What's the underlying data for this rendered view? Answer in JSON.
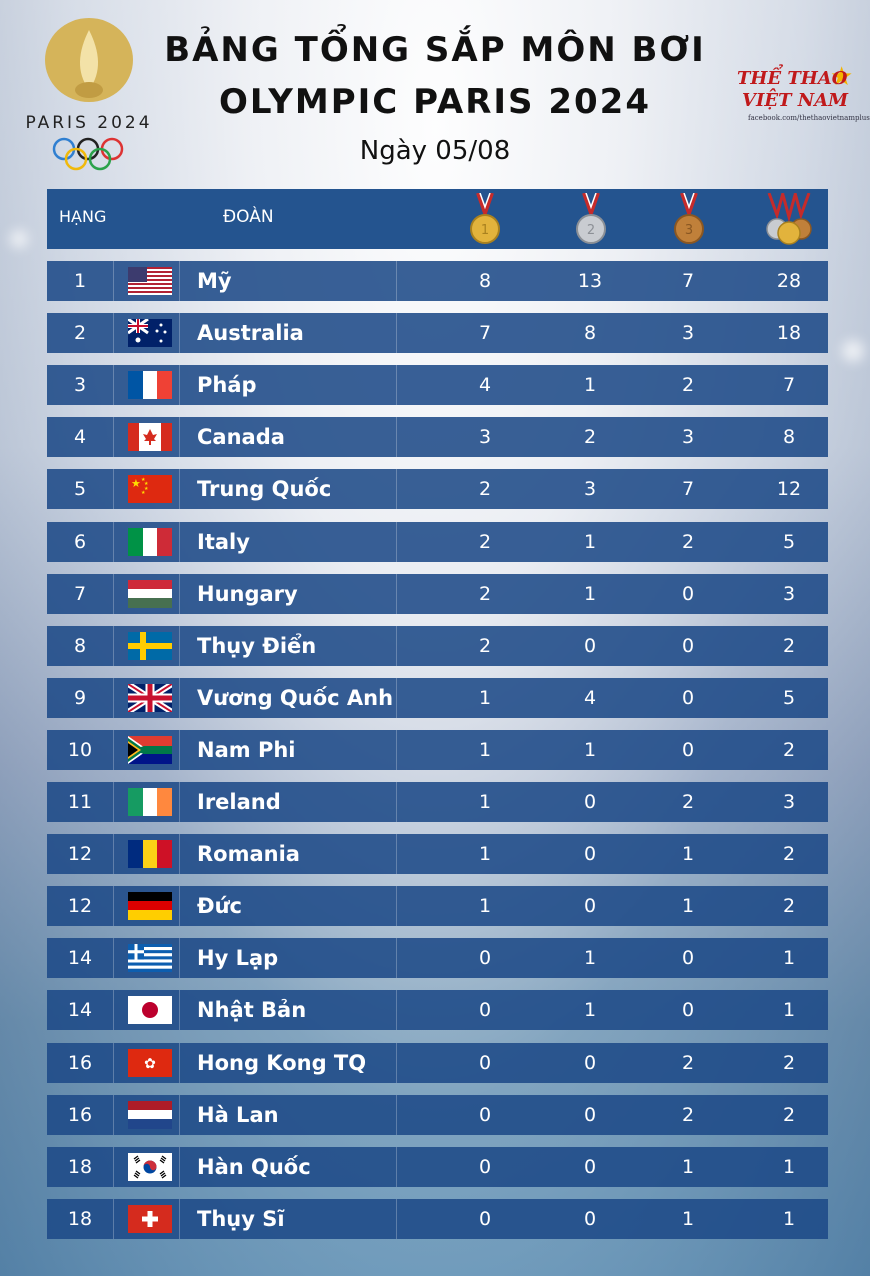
{
  "header": {
    "title_line1": "BẢNG TỔNG SẮP MÔN BƠI",
    "title_line2": "OLYMPIC PARIS 2024",
    "date": "Ngày 05/08",
    "paris_logo_text": "PARIS 2024",
    "brand_line1": "THỂ THAO",
    "brand_line2": "VIỆT NAM",
    "brand_url": "facebook.com/thethaovietnamplus"
  },
  "table": {
    "col_rank": "HẠNG",
    "col_team": "ĐOÀN",
    "medal_icons": [
      "gold-medal-icon",
      "silver-medal-icon",
      "bronze-medal-icon",
      "total-medals-icon"
    ],
    "rows": [
      {
        "rank": "1",
        "team": "Mỹ",
        "flag": "usa-flag-icon",
        "gold": "8",
        "silver": "13",
        "bronze": "7",
        "total": "28"
      },
      {
        "rank": "2",
        "team": "Australia",
        "flag": "australia-flag-icon",
        "gold": "7",
        "silver": "8",
        "bronze": "3",
        "total": "18"
      },
      {
        "rank": "3",
        "team": "Pháp",
        "flag": "france-flag-icon",
        "gold": "4",
        "silver": "1",
        "bronze": "2",
        "total": "7"
      },
      {
        "rank": "4",
        "team": "Canada",
        "flag": "canada-flag-icon",
        "gold": "3",
        "silver": "2",
        "bronze": "3",
        "total": "8"
      },
      {
        "rank": "5",
        "team": "Trung Quốc",
        "flag": "china-flag-icon",
        "gold": "2",
        "silver": "3",
        "bronze": "7",
        "total": "12"
      },
      {
        "rank": "6",
        "team": "Italy",
        "flag": "italy-flag-icon",
        "gold": "2",
        "silver": "1",
        "bronze": "2",
        "total": "5"
      },
      {
        "rank": "7",
        "team": "Hungary",
        "flag": "hungary-flag-icon",
        "gold": "2",
        "silver": "1",
        "bronze": "0",
        "total": "3"
      },
      {
        "rank": "8",
        "team": "Thụy Điển",
        "flag": "sweden-flag-icon",
        "gold": "2",
        "silver": "0",
        "bronze": "0",
        "total": "2"
      },
      {
        "rank": "9",
        "team": "Vương Quốc Anh",
        "flag": "uk-flag-icon",
        "gold": "1",
        "silver": "4",
        "bronze": "0",
        "total": "5"
      },
      {
        "rank": "10",
        "team": "Nam Phi",
        "flag": "south-africa-flag-icon",
        "gold": "1",
        "silver": "1",
        "bronze": "0",
        "total": "2"
      },
      {
        "rank": "11",
        "team": "Ireland",
        "flag": "ireland-flag-icon",
        "gold": "1",
        "silver": "0",
        "bronze": "2",
        "total": "3"
      },
      {
        "rank": "12",
        "team": "Romania",
        "flag": "romania-flag-icon",
        "gold": "1",
        "silver": "0",
        "bronze": "1",
        "total": "2"
      },
      {
        "rank": "12",
        "team": "Đức",
        "flag": "germany-flag-icon",
        "gold": "1",
        "silver": "0",
        "bronze": "1",
        "total": "2"
      },
      {
        "rank": "14",
        "team": "Hy Lạp",
        "flag": "greece-flag-icon",
        "gold": "0",
        "silver": "1",
        "bronze": "0",
        "total": "1"
      },
      {
        "rank": "14",
        "team": "Nhật Bản",
        "flag": "japan-flag-icon",
        "gold": "0",
        "silver": "1",
        "bronze": "0",
        "total": "1"
      },
      {
        "rank": "16",
        "team": "Hong Kong TQ",
        "flag": "hong-kong-flag-icon",
        "gold": "0",
        "silver": "0",
        "bronze": "2",
        "total": "2"
      },
      {
        "rank": "16",
        "team": "Hà Lan",
        "flag": "netherlands-flag-icon",
        "gold": "0",
        "silver": "0",
        "bronze": "2",
        "total": "2"
      },
      {
        "rank": "18",
        "team": "Hàn Quốc",
        "flag": "south-korea-flag-icon",
        "gold": "0",
        "silver": "0",
        "bronze": "1",
        "total": "1"
      },
      {
        "rank": "18",
        "team": "Thụy Sĩ",
        "flag": "switzerland-flag-icon",
        "gold": "0",
        "silver": "0",
        "bronze": "1",
        "total": "1"
      }
    ]
  },
  "colors": {
    "row_bg": "#1e4a87",
    "header_bg": "#24548f",
    "gold": "#e2b33c",
    "silver": "#c9ccd1",
    "bronze": "#c0803a"
  }
}
